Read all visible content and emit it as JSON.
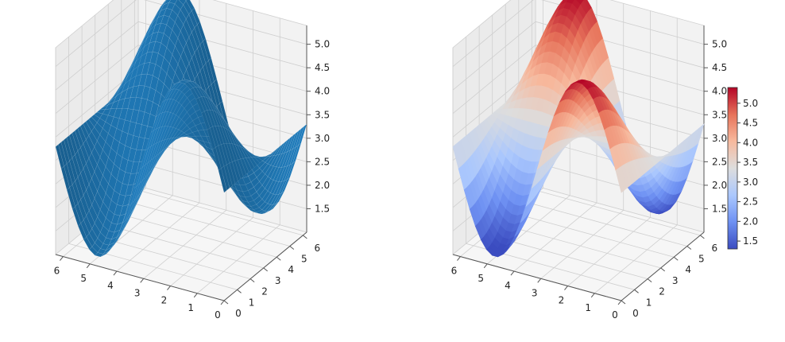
{
  "chart_data": [
    {
      "type": "surface",
      "title": "",
      "xlabel": "",
      "ylabel": "",
      "zlabel": "",
      "surface_color": "#1f77b4",
      "colormap": null,
      "xlim": [
        0,
        6.28
      ],
      "ylim": [
        0,
        6.28
      ],
      "zlim": [
        1.0,
        5.4
      ],
      "grid": true,
      "x_ticks": [
        "0",
        "1",
        "2",
        "3",
        "4",
        "5",
        "6"
      ],
      "y_ticks": [
        "0",
        "1",
        "2",
        "3",
        "4",
        "5",
        "6"
      ],
      "z_ticks": [
        "1.5",
        "2.0",
        "2.5",
        "3.0",
        "3.5",
        "4.0",
        "4.5",
        "5.0"
      ],
      "z_range_observed": [
        1.3,
        5.4
      ]
    },
    {
      "type": "surface",
      "title": "",
      "xlabel": "",
      "ylabel": "",
      "zlabel": "",
      "surface_color": null,
      "colormap": "coolwarm",
      "xlim": [
        0,
        6.28
      ],
      "ylim": [
        0,
        6.28
      ],
      "zlim": [
        1.0,
        5.4
      ],
      "grid": true,
      "x_ticks": [
        "0",
        "1",
        "2",
        "3",
        "4",
        "5",
        "6"
      ],
      "y_ticks": [
        "0",
        "1",
        "2",
        "3",
        "4",
        "5",
        "6"
      ],
      "z_ticks": [
        "1.5",
        "2.0",
        "2.5",
        "3.0",
        "3.5",
        "4.0",
        "4.5",
        "5.0"
      ],
      "colorbar": {
        "placement": "right",
        "range": [
          1.3,
          5.4
        ],
        "ticks": [
          "1.5",
          "2.0",
          "2.5",
          "3.0",
          "3.5",
          "4.0",
          "4.5",
          "5.0"
        ],
        "colors": [
          "#3b4cc0",
          "#6f92f3",
          "#aac7fd",
          "#dddddd",
          "#f7b89c",
          "#e7745b",
          "#b40426"
        ]
      }
    }
  ]
}
